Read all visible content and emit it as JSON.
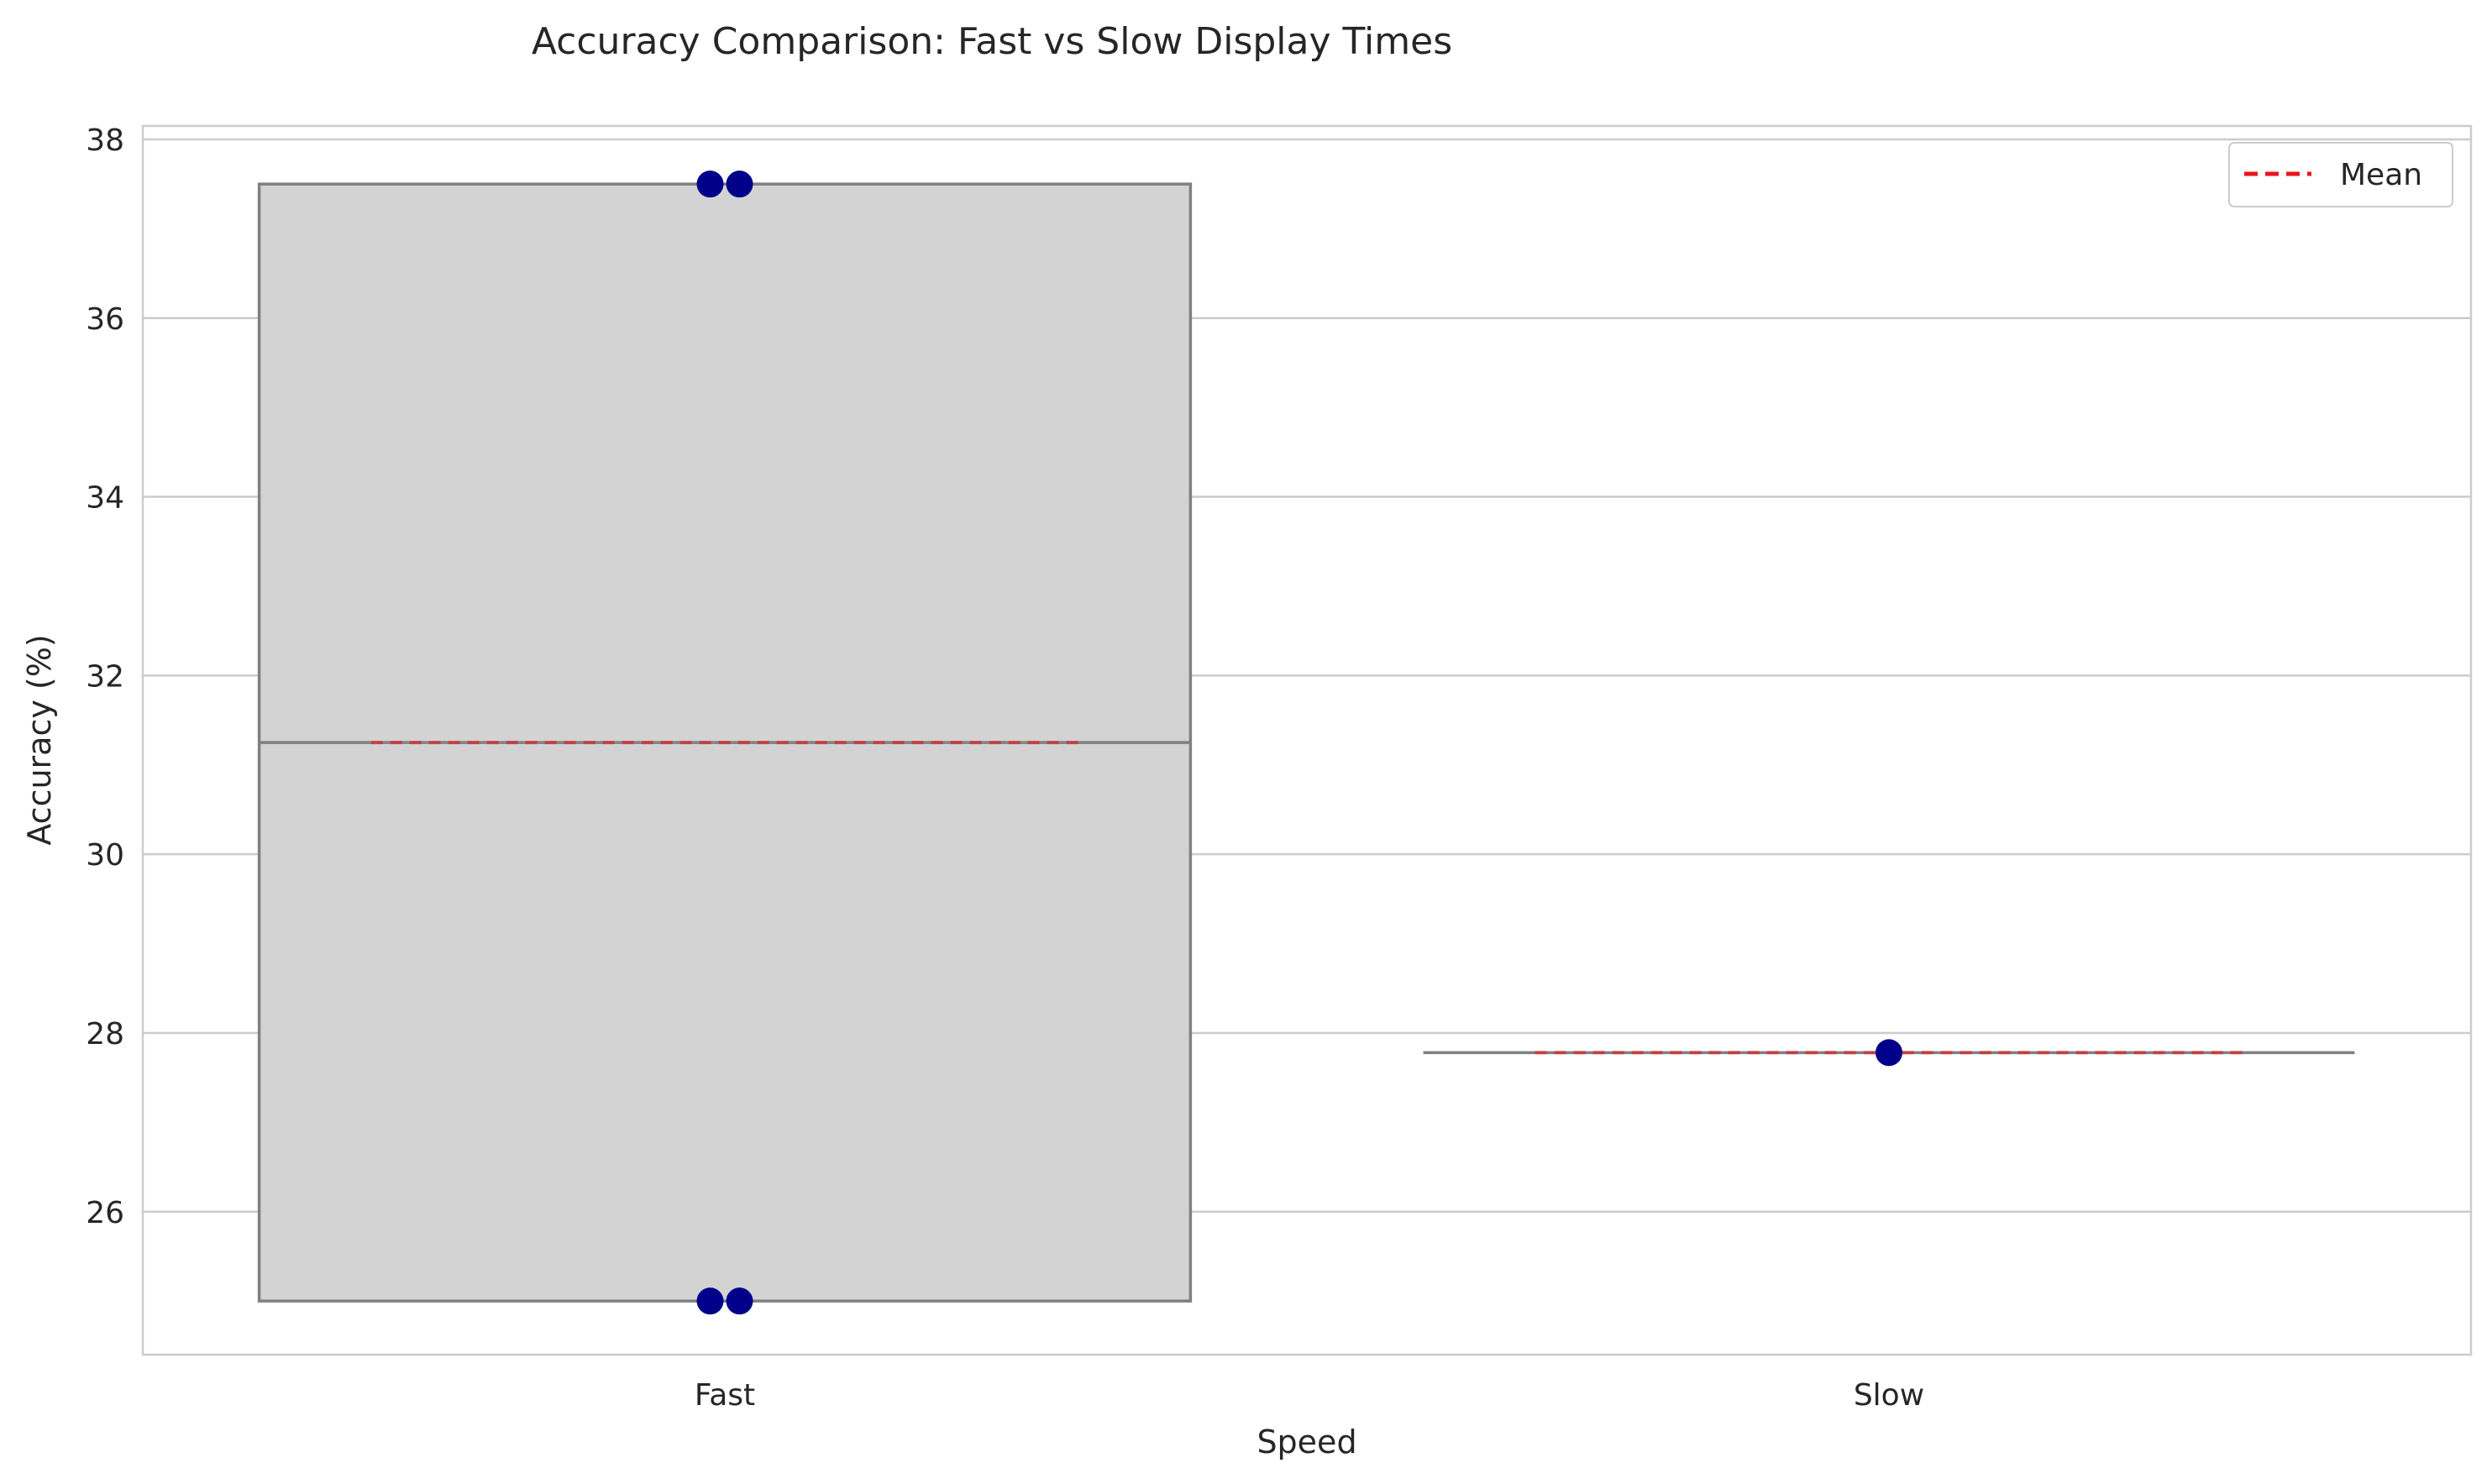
{
  "chart_data": {
    "type": "box",
    "title": "Accuracy Comparison: Fast vs Slow Display Times",
    "xlabel": "Speed",
    "ylabel": "Accuracy (%)",
    "categories": [
      "Fast",
      "Slow"
    ],
    "ylim": [
      24.4,
      38.15
    ],
    "yticks": [
      26,
      28,
      30,
      32,
      34,
      36,
      38
    ],
    "grid": "y",
    "legend": {
      "position": "top-right",
      "entries": [
        {
          "label": "Mean",
          "style": "dashed",
          "color": "#e8161b"
        }
      ]
    },
    "boxes": [
      {
        "category": "Fast",
        "q1": 25.0,
        "median": 31.25,
        "q3": 37.5,
        "mean": 31.25,
        "points": [
          37.5,
          37.5,
          25.0,
          25.0
        ]
      },
      {
        "category": "Slow",
        "q1": 27.78,
        "median": 27.78,
        "q3": 27.78,
        "mean": 27.78,
        "points": [
          27.78
        ]
      }
    ],
    "colors": {
      "box_fill": "#d3d3d3",
      "box_edge": "#808080",
      "points": "#00008b",
      "mean": "#e8161b",
      "grid": "#cccccc"
    }
  }
}
